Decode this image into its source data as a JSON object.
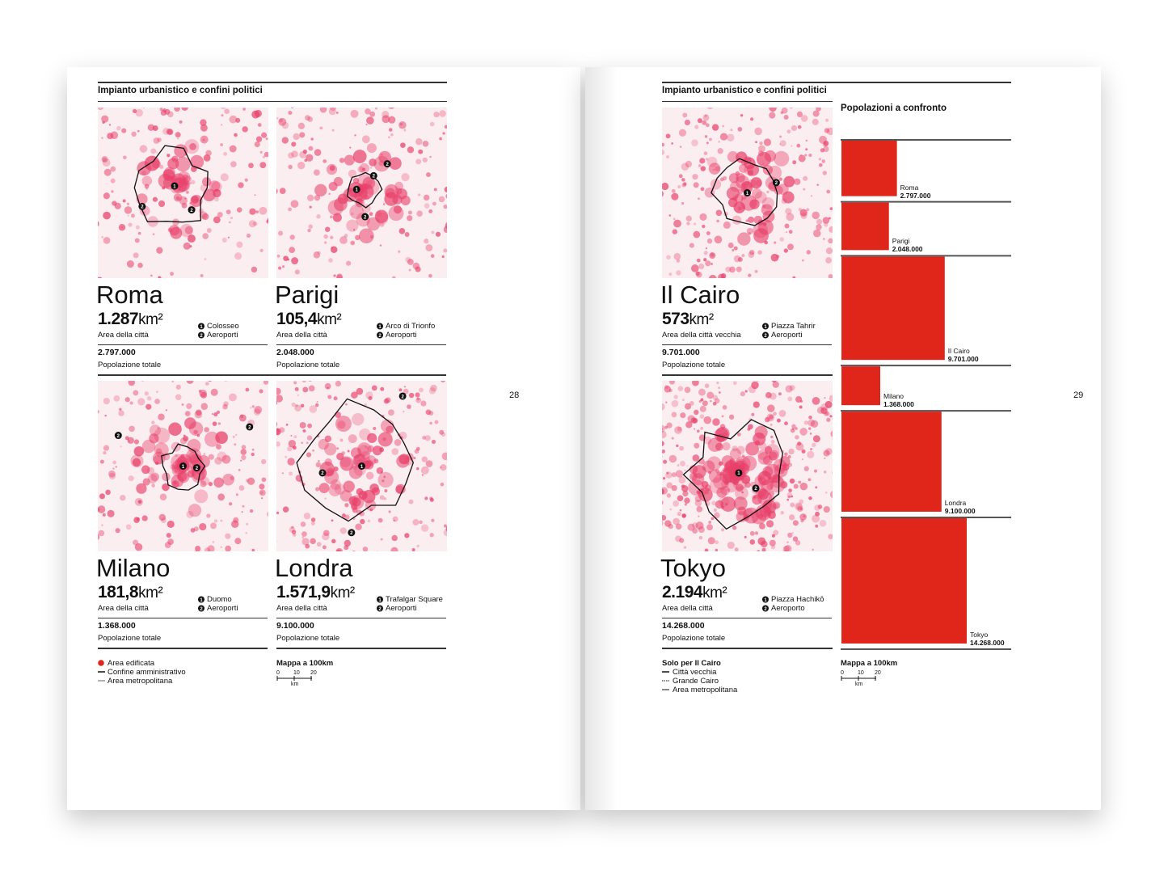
{
  "left_page": {
    "header": "Impianto urbanistico e confini politici",
    "page_number": "28",
    "cities": [
      {
        "name": "Roma",
        "area": "1.287",
        "unit": "km²",
        "area_label": "Area della città",
        "landmarks": [
          {
            "num": "1",
            "label": "Colosseo"
          },
          {
            "num": "2",
            "label": "Aeroporti"
          }
        ],
        "population": "2.797.000",
        "population_label": "Popolazione totale"
      },
      {
        "name": "Parigi",
        "area": "105,4",
        "unit": "km²",
        "area_label": "Area della città",
        "landmarks": [
          {
            "num": "1",
            "label": "Arco di Trionfo"
          },
          {
            "num": "2",
            "label": "Aeroporti"
          }
        ],
        "population": "2.048.000",
        "population_label": "Popolazione totale"
      },
      {
        "name": "Milano",
        "area": "181,8",
        "unit": "km²",
        "area_label": "Area della città",
        "landmarks": [
          {
            "num": "1",
            "label": "Duomo"
          },
          {
            "num": "2",
            "label": "Aeroporti"
          }
        ],
        "population": "1.368.000",
        "population_label": "Popolazione totale"
      },
      {
        "name": "Londra",
        "area": "1.571,9",
        "unit": "km²",
        "area_label": "Area della città",
        "landmarks": [
          {
            "num": "1",
            "label": "Trafalgar Square"
          },
          {
            "num": "2",
            "label": "Aeroporti"
          }
        ],
        "population": "9.100.000",
        "population_label": "Popolazione totale"
      }
    ],
    "legend": [
      "Area edificata",
      "Confine amministrativo",
      "Area metropolitana"
    ],
    "scale": {
      "title": "Mappa a 100km",
      "ticks": [
        "0",
        "10",
        "20"
      ],
      "unit": "km"
    }
  },
  "right_page": {
    "header": "Impianto urbanistico e confini politici",
    "page_number": "29",
    "cities": [
      {
        "name": "Il Cairo",
        "area": "573",
        "unit": "km²",
        "area_label": "Area della città vecchia",
        "landmarks": [
          {
            "num": "1",
            "label": "Piazza Tahrir"
          },
          {
            "num": "2",
            "label": "Aeroporti"
          }
        ],
        "population": "9.701.000",
        "population_label": "Popolazione totale"
      },
      {
        "name": "Tokyo",
        "area": "2.194",
        "unit": "km²",
        "area_label": "Area della città",
        "landmarks": [
          {
            "num": "1",
            "label": "Piazza Hachikō"
          },
          {
            "num": "2",
            "label": "Aeroporto"
          }
        ],
        "population": "14.268.000",
        "population_label": "Popolazione totale"
      }
    ],
    "note": {
      "title": "Solo per Il Cairo",
      "items": [
        "Città vecchia",
        "Grande Cairo",
        "Area metropolitana"
      ]
    },
    "scale": {
      "title": "Mappa a 100km",
      "ticks": [
        "0",
        "10",
        "20"
      ],
      "unit": "km"
    }
  },
  "chart_data": {
    "type": "bar",
    "title": "Popolazioni a confronto",
    "color": "#e0251b",
    "categories": [
      "Roma",
      "Parigi",
      "Il Cairo",
      "Milano",
      "Londra",
      "Tokyo"
    ],
    "values": [
      2797000,
      2048000,
      9701000,
      1368000,
      9100000,
      14268000
    ],
    "value_labels": [
      "2.797.000",
      "2.048.000",
      "9.701.000",
      "1.368.000",
      "9.100.000",
      "14.268.000"
    ]
  }
}
